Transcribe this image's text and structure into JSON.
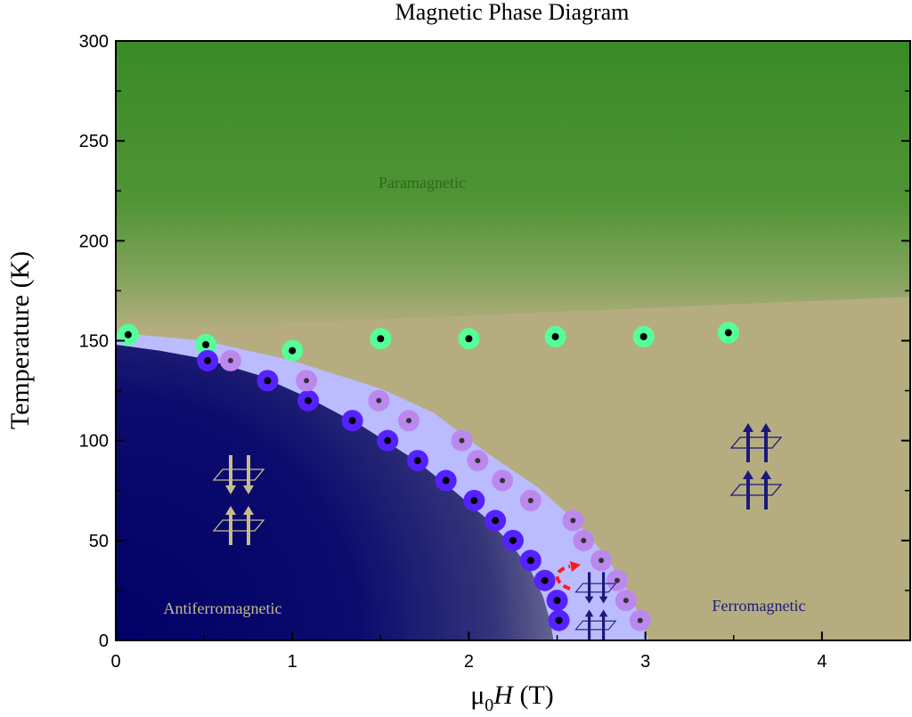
{
  "chart_data": {
    "type": "scatter",
    "title": "Magnetic Phase Diagram",
    "xlabel": {
      "prefix": "μ",
      "subscript": "0",
      "italic": "H",
      "suffix": " (T)"
    },
    "ylabel": "Temperature (K)",
    "xlim": [
      0,
      4.5
    ],
    "ylim": [
      0,
      300
    ],
    "xticks": [
      0,
      1,
      2,
      3,
      4
    ],
    "yticks": [
      0,
      50,
      100,
      150,
      200,
      250,
      300
    ],
    "grid": false,
    "regions": [
      {
        "label": "Paramagnetic",
        "color": "#3d8b2a"
      },
      {
        "label": "Antiferromagnetic",
        "color": "#000066",
        "label_color": "#c8bd8a"
      },
      {
        "label": "Ferromagnetic",
        "color": "#b5ad80",
        "label_color": "#1a1a7a"
      },
      {
        "label": "",
        "color": "#bbbbff"
      }
    ],
    "afm_boundary": [
      [
        0,
        148
      ],
      [
        0.25,
        145
      ],
      [
        0.5,
        141
      ],
      [
        0.8,
        133
      ],
      [
        1.1,
        121
      ],
      [
        1.4,
        107
      ],
      [
        1.7,
        90
      ],
      [
        1.9,
        76
      ],
      [
        2.1,
        61
      ],
      [
        2.25,
        47
      ],
      [
        2.35,
        35
      ],
      [
        2.42,
        22
      ],
      [
        2.46,
        10
      ],
      [
        2.48,
        0
      ]
    ],
    "intermediate_boundary": [
      [
        0,
        154
      ],
      [
        0.5,
        150
      ],
      [
        1.0,
        140
      ],
      [
        1.5,
        126
      ],
      [
        1.8,
        114
      ],
      [
        2.1,
        94
      ],
      [
        2.4,
        76
      ],
      [
        2.6,
        60
      ],
      [
        2.78,
        42
      ],
      [
        2.92,
        22
      ],
      [
        3.02,
        0
      ]
    ],
    "series": [
      {
        "color": "#55ff99",
        "x": [
          0.07,
          0.51,
          1.0,
          1.5,
          2.0,
          2.49,
          2.99,
          3.47
        ],
        "y": [
          153,
          148,
          145,
          151,
          151,
          152,
          152,
          154
        ]
      },
      {
        "color": "#5522ff",
        "x": [
          0.52,
          0.86,
          1.09,
          1.34,
          1.54,
          1.71,
          1.87,
          2.03,
          2.15,
          2.25,
          2.35,
          2.43,
          2.5,
          2.51
        ],
        "y": [
          140,
          130,
          120,
          110,
          100,
          90,
          80,
          70,
          60,
          50,
          40,
          30,
          20,
          10
        ]
      },
      {
        "color": "#bb88ee",
        "x": [
          0.65,
          1.08,
          1.49,
          1.66,
          1.96,
          2.05,
          2.19,
          2.35,
          2.59,
          2.65,
          2.75,
          2.84,
          2.89,
          2.97
        ],
        "y": [
          140,
          130,
          120,
          110,
          100,
          90,
          80,
          70,
          60,
          50,
          40,
          30,
          20,
          10
        ]
      }
    ]
  }
}
